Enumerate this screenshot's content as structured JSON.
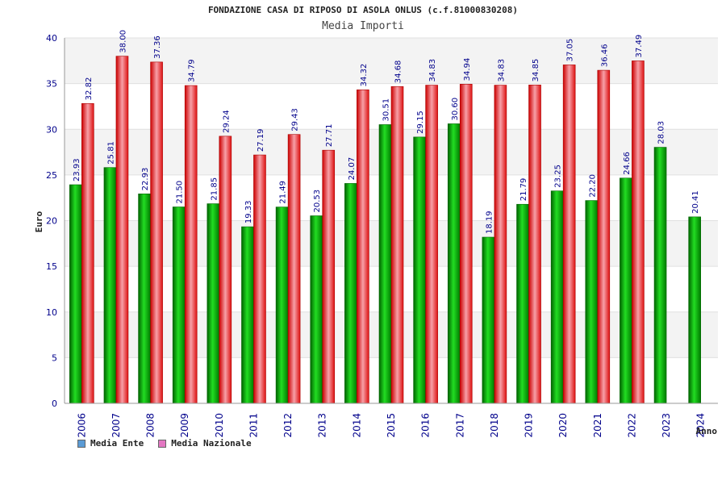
{
  "chart_data": {
    "type": "bar",
    "title": "FONDAZIONE CASA DI RIPOSO DI ASOLA ONLUS (c.f.81000830208)",
    "subtitle": "Media Importi",
    "xlabel": "Anno",
    "ylabel": "Euro",
    "ylim": [
      0,
      40
    ],
    "yticks": [
      "0",
      "5",
      "10",
      "15",
      "20",
      "25",
      "30",
      "35",
      "40"
    ],
    "categories": [
      "2006",
      "2007",
      "2008",
      "2009",
      "2010",
      "2011",
      "2012",
      "2013",
      "2014",
      "2015",
      "2016",
      "2017",
      "2018",
      "2019",
      "2020",
      "2021",
      "2022",
      "2023",
      "2024"
    ],
    "series": [
      {
        "name": "Media Ente",
        "color": "#00aa00",
        "values": [
          23.93,
          25.81,
          22.93,
          21.5,
          21.85,
          19.33,
          21.49,
          20.53,
          24.07,
          30.51,
          29.15,
          30.6,
          18.19,
          21.79,
          23.25,
          22.2,
          24.66,
          28.03,
          20.41
        ],
        "labels": [
          "23.93",
          "25.81",
          "22.93",
          "21.50",
          "21.85",
          "19.33",
          "21.49",
          "20.53",
          "24.07",
          "30.51",
          "29.15",
          "30.60",
          "18.19",
          "21.79",
          "23.25",
          "22.20",
          "24.66",
          "28.03",
          "20.41"
        ]
      },
      {
        "name": "Media Nazionale",
        "color": "#ee2222",
        "values": [
          32.82,
          38.0,
          37.36,
          34.79,
          29.24,
          27.19,
          29.43,
          27.71,
          34.32,
          34.68,
          34.83,
          34.94,
          34.83,
          34.85,
          37.05,
          36.46,
          37.49,
          null,
          null
        ],
        "labels": [
          "32.82",
          "38.00",
          "37.36",
          "34.79",
          "29.24",
          "27.19",
          "29.43",
          "27.71",
          "34.32",
          "34.68",
          "34.83",
          "34.94",
          "34.83",
          "34.85",
          "37.05",
          "36.46",
          "37.49",
          null,
          null
        ]
      }
    ],
    "legend": [
      {
        "name": "Media Ente",
        "color": "#5b9bd5"
      },
      {
        "name": "Media Nazionale",
        "color": "#e377c2"
      }
    ],
    "grid": true,
    "legend_position": "bottom-left"
  }
}
